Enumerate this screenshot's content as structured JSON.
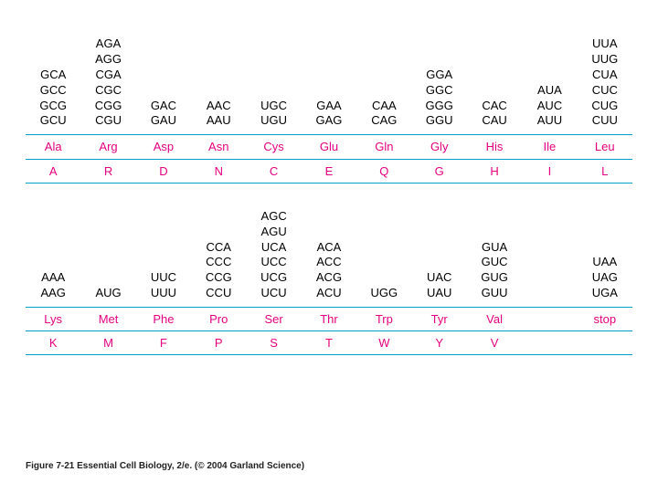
{
  "colors": {
    "codon_text": "#000000",
    "label_text": "#e4007f",
    "rule": "#00a0c6",
    "background": "#ffffff",
    "caption": "#222222"
  },
  "fontsizes": {
    "codon": 13,
    "label": 13,
    "letter": 13,
    "caption": 10
  },
  "rows": [
    {
      "columns": [
        {
          "codons": [
            "GCA",
            "GCC",
            "GCG",
            "GCU"
          ],
          "name": "Ala",
          "letter": "A"
        },
        {
          "codons": [
            "AGA",
            "AGG",
            "CGA",
            "CGC",
            "CGG",
            "CGU"
          ],
          "name": "Arg",
          "letter": "R"
        },
        {
          "codons": [
            "GAC",
            "GAU"
          ],
          "name": "Asp",
          "letter": "D"
        },
        {
          "codons": [
            "AAC",
            "AAU"
          ],
          "name": "Asn",
          "letter": "N"
        },
        {
          "codons": [
            "UGC",
            "UGU"
          ],
          "name": "Cys",
          "letter": "C"
        },
        {
          "codons": [
            "GAA",
            "GAG"
          ],
          "name": "Glu",
          "letter": "E"
        },
        {
          "codons": [
            "CAA",
            "CAG"
          ],
          "name": "Gln",
          "letter": "Q"
        },
        {
          "codons": [
            "GGA",
            "GGC",
            "GGG",
            "GGU"
          ],
          "name": "Gly",
          "letter": "G"
        },
        {
          "codons": [
            "CAC",
            "CAU"
          ],
          "name": "His",
          "letter": "H"
        },
        {
          "codons": [
            "AUA",
            "AUC",
            "AUU"
          ],
          "name": "Ile",
          "letter": "I"
        },
        {
          "codons": [
            "UUA",
            "UUG",
            "CUA",
            "CUC",
            "CUG",
            "CUU"
          ],
          "name": "Leu",
          "letter": "L"
        }
      ]
    },
    {
      "columns": [
        {
          "codons": [
            "AAA",
            "AAG"
          ],
          "name": "Lys",
          "letter": "K"
        },
        {
          "codons": [
            "AUG"
          ],
          "name": "Met",
          "letter": "M"
        },
        {
          "codons": [
            "UUC",
            "UUU"
          ],
          "name": "Phe",
          "letter": "F"
        },
        {
          "codons": [
            "CCA",
            "CCC",
            "CCG",
            "CCU"
          ],
          "name": "Pro",
          "letter": "P"
        },
        {
          "codons": [
            "AGC",
            "AGU",
            "UCA",
            "UCC",
            "UCG",
            "UCU"
          ],
          "name": "Ser",
          "letter": "S"
        },
        {
          "codons": [
            "ACA",
            "ACC",
            "ACG",
            "ACU"
          ],
          "name": "Thr",
          "letter": "T"
        },
        {
          "codons": [
            "UGG"
          ],
          "name": "Trp",
          "letter": "W"
        },
        {
          "codons": [
            "UAC",
            "UAU"
          ],
          "name": "Tyr",
          "letter": "Y"
        },
        {
          "codons": [
            "GUA",
            "GUC",
            "GUG",
            "GUU"
          ],
          "name": "Val",
          "letter": "V"
        },
        {
          "codons": [],
          "name": "",
          "letter": ""
        },
        {
          "codons": [
            "UAA",
            "UAG",
            "UGA"
          ],
          "name": "stop",
          "letter": ""
        }
      ]
    }
  ],
  "caption": "Figure 7-21 Essential Cell Biology, 2/e. (© 2004 Garland Science)"
}
